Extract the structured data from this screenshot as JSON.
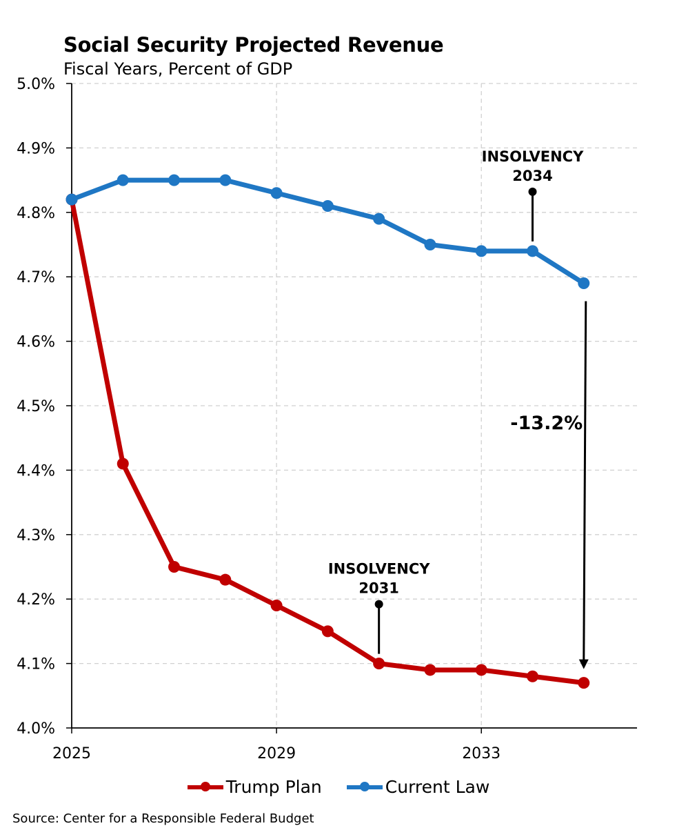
{
  "title": "Social Security Projected Revenue",
  "subtitle": "Fiscal Years, Percent of GDP",
  "source": "Source: Center for a Responsible Federal Budget",
  "colors": {
    "trump": "#c00000",
    "current": "#1f77c4",
    "grid": "#d0d0d0"
  },
  "chart_data": {
    "type": "line",
    "x": [
      2025,
      2026,
      2027,
      2028,
      2029,
      2030,
      2031,
      2032,
      2033,
      2034,
      2035
    ],
    "x_ticks": [
      "2025",
      "2029",
      "2033"
    ],
    "x_tick_values": [
      2025,
      2029,
      2033
    ],
    "xlim": [
      2025,
      2036.04
    ],
    "ylim": [
      4.0,
      5.0
    ],
    "y_ticks": [
      "4.0%",
      "4.1%",
      "4.2%",
      "4.3%",
      "4.4%",
      "4.5%",
      "4.6%",
      "4.7%",
      "4.8%",
      "4.9%",
      "5.0%"
    ],
    "y_tick_values": [
      4.0,
      4.1,
      4.2,
      4.3,
      4.4,
      4.5,
      4.6,
      4.7,
      4.8,
      4.9,
      5.0
    ],
    "grid": true,
    "legend_position": "bottom",
    "series": [
      {
        "name": "Trump Plan",
        "color": "#c00000",
        "values": [
          4.82,
          4.41,
          4.25,
          4.23,
          4.19,
          4.15,
          4.1,
          4.09,
          4.09,
          4.08,
          4.07
        ]
      },
      {
        "name": "Current Law",
        "color": "#1f77c4",
        "values": [
          4.82,
          4.85,
          4.85,
          4.85,
          4.83,
          4.81,
          4.79,
          4.75,
          4.74,
          4.74,
          4.69
        ]
      }
    ],
    "annotations": [
      {
        "line1": "INSOLVENCY",
        "line2": "2034",
        "x": 2034,
        "series": 1
      },
      {
        "line1": "INSOLVENCY",
        "line2": "2031",
        "x": 2031,
        "series": 0
      }
    ],
    "difference_label": "-13.2%"
  }
}
